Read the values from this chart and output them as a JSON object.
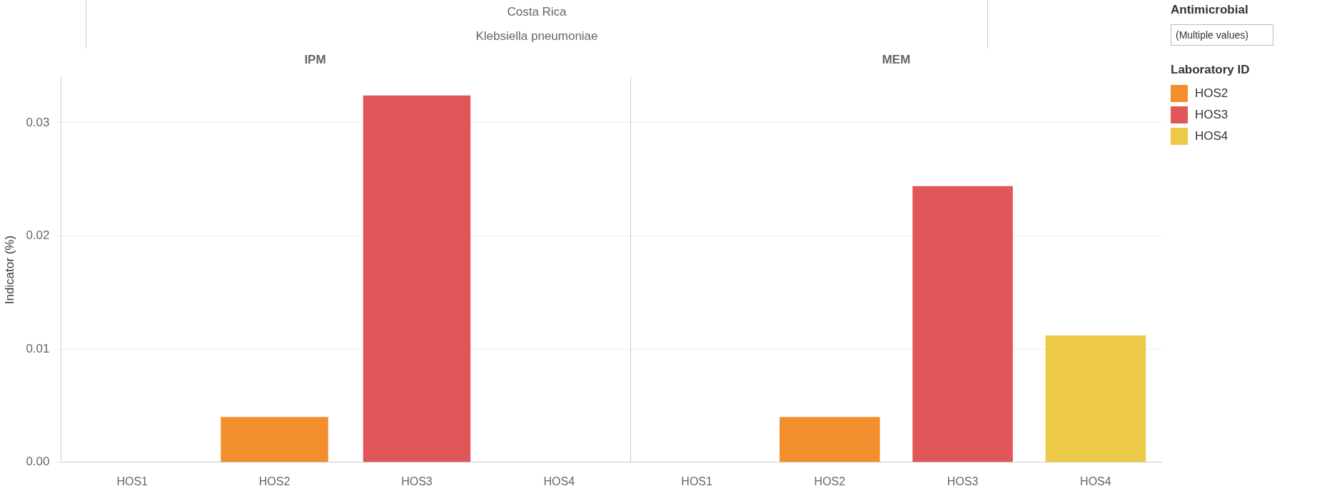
{
  "chart_data": [
    {
      "type": "other",
      "title": "Costa Rica",
      "subtitle": "Klebsiella pneumoniae"
    },
    {
      "type": "bar",
      "title": "IPM",
      "ylabel": "Indicator (%)",
      "categories": [
        "HOS1",
        "HOS2",
        "HOS3",
        "HOS4"
      ],
      "stacked": true,
      "series": [
        {
          "color": "#f28e2b",
          "values": [
            null,
            0.004,
            null,
            null
          ]
        },
        {
          "color": "#e15759",
          "values": [
            null,
            null,
            0.0324,
            null
          ]
        },
        {
          "color": "#edc948",
          "values": [
            null,
            null,
            null,
            null
          ]
        }
      ],
      "ylim": [
        0,
        0.034
      ],
      "yticks": [
        {
          "value": 0,
          "label": "0.00"
        },
        0.01,
        0.02,
        0.03
      ],
      "grid": "y",
      "legend": false
    },
    {
      "type": "bar",
      "title": "MEM",
      "categories": [
        "HOS1",
        "HOS2",
        "HOS3",
        "HOS4"
      ],
      "stacked": true,
      "series": [
        {
          "name": "HOS2",
          "color": "#f28e2b",
          "values": [
            null,
            0.004,
            null,
            null
          ]
        },
        {
          "name": "HOS3",
          "color": "#e15759",
          "values": [
            null,
            null,
            0.0244,
            null
          ]
        },
        {
          "name": "HOS4",
          "color": "#edc948",
          "values": [
            null,
            null,
            null,
            0.0112
          ]
        }
      ],
      "ylim": [
        0,
        0.034
      ],
      "yticks": [
        0,
        0.01,
        0.02,
        0.03
      ],
      "grid": "y",
      "tick_labels": "x",
      "legend": "right",
      "legend_title": "Laboratory ID"
    },
    {
      "type": "other",
      "title": "Antimicrobial",
      "annotations": [
        "(Multiple values)"
      ]
    }
  ]
}
